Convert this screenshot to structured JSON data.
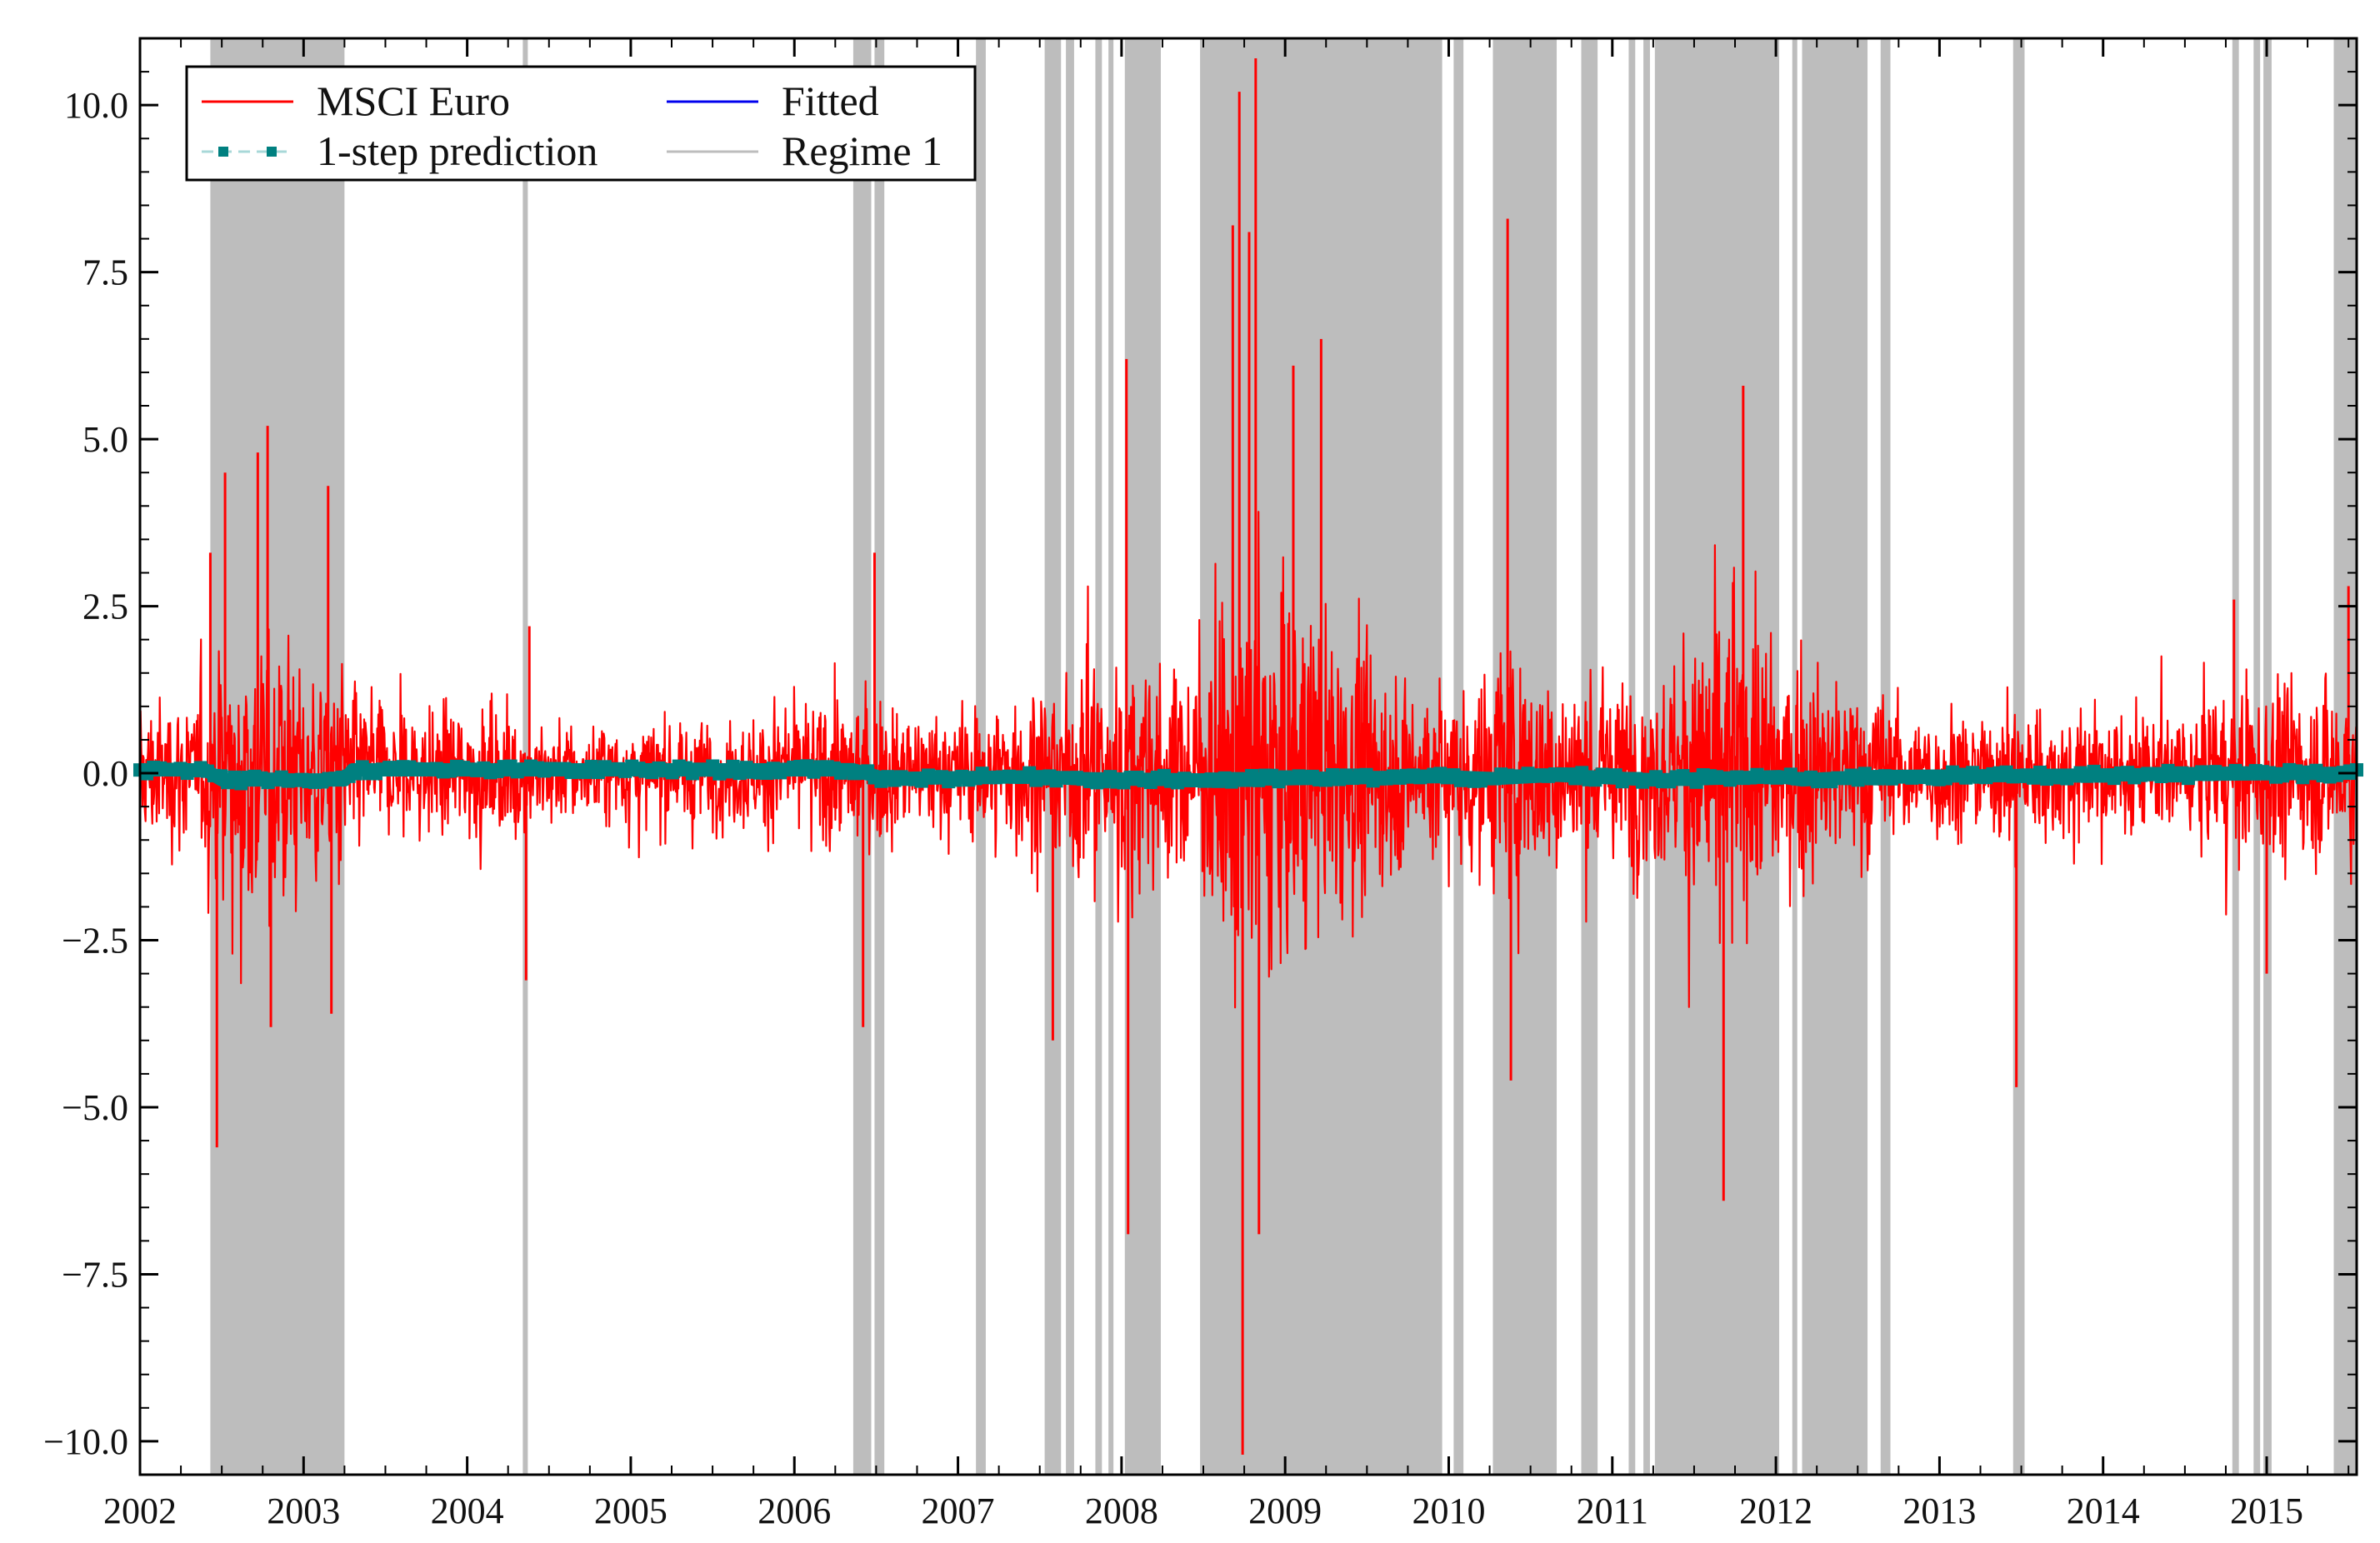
{
  "chart_data": {
    "type": "line",
    "title": "",
    "xlabel": "",
    "ylabel": "",
    "xlim": [
      2002.0,
      2015.55
    ],
    "ylim": [
      -10.5,
      11.0
    ],
    "x_ticks": [
      2002,
      2003,
      2004,
      2005,
      2006,
      2007,
      2008,
      2009,
      2010,
      2011,
      2012,
      2013,
      2014,
      2015
    ],
    "x_tick_labels": [
      "2002",
      "2003",
      "2004",
      "2005",
      "2006",
      "2007",
      "2008",
      "2009",
      "2010",
      "2011",
      "2012",
      "2013",
      "2014",
      "2015"
    ],
    "y_ticks": [
      -10.0,
      -7.5,
      -5.0,
      -2.5,
      0.0,
      2.5,
      5.0,
      7.5,
      10.0
    ],
    "y_tick_labels": [
      "−10.0",
      "−7.5",
      "−5.0",
      "−2.5",
      "0.0",
      "2.5",
      "5.0",
      "7.5",
      "10.0"
    ],
    "grid": false,
    "legend_position": "top-left",
    "legend": [
      {
        "label": "MSCI Euro",
        "style": "line",
        "color": "#ff0000"
      },
      {
        "label": "Fitted",
        "style": "line",
        "color": "#0000ee"
      },
      {
        "label": "1-step prediction",
        "style": "dash-square",
        "color": "#008080"
      },
      {
        "label": "Regime 1",
        "style": "line",
        "color": "#bdbdbd"
      }
    ],
    "regime_1_periods": [
      [
        2002.43,
        2003.25
      ],
      [
        2004.34,
        2004.36
      ],
      [
        2006.36,
        2006.47
      ],
      [
        2006.49,
        2006.55
      ],
      [
        2007.11,
        2007.17
      ],
      [
        2007.53,
        2007.63
      ],
      [
        2007.66,
        2007.71
      ],
      [
        2007.84,
        2007.88
      ],
      [
        2007.92,
        2007.95
      ],
      [
        2008.02,
        2008.24
      ],
      [
        2008.48,
        2009.96
      ],
      [
        2010.03,
        2010.09
      ],
      [
        2010.27,
        2010.66
      ],
      [
        2010.81,
        2010.91
      ],
      [
        2011.1,
        2011.14
      ],
      [
        2011.19,
        2011.23
      ],
      [
        2011.26,
        2012.02
      ],
      [
        2012.1,
        2012.13
      ],
      [
        2012.16,
        2012.56
      ],
      [
        2012.64,
        2012.7
      ],
      [
        2013.45,
        2013.52
      ],
      [
        2014.79,
        2014.83
      ],
      [
        2014.92,
        2014.96
      ],
      [
        2014.98,
        2015.03
      ],
      [
        2015.41,
        2015.55
      ]
    ],
    "series": [
      {
        "name": "MSCI Euro",
        "color": "#ff0000",
        "volatility_envelope": {
          "x": [
            2002.0,
            2002.4,
            2002.5,
            2002.7,
            2002.9,
            2003.2,
            2003.4,
            2004.0,
            2004.5,
            2005.0,
            2005.5,
            2006.0,
            2006.4,
            2006.7,
            2007.0,
            2007.4,
            2007.7,
            2008.0,
            2008.4,
            2008.65,
            2008.8,
            2009.0,
            2009.3,
            2009.6,
            2009.9,
            2010.2,
            2010.4,
            2010.6,
            2011.0,
            2011.4,
            2011.6,
            2011.8,
            2012.0,
            2012.5,
            2012.8,
            2013.2,
            2013.6,
            2014.0,
            2014.5,
            2014.8,
            2015.2,
            2015.55
          ],
          "y": [
            0.9,
            1.0,
            1.8,
            2.0,
            1.7,
            1.4,
            0.9,
            0.8,
            0.7,
            0.6,
            0.7,
            0.8,
            1.0,
            0.8,
            0.8,
            1.1,
            1.3,
            1.5,
            1.2,
            2.6,
            3.2,
            2.4,
            1.8,
            1.4,
            1.2,
            1.3,
            1.8,
            1.3,
            1.2,
            1.3,
            2.2,
            2.0,
            1.4,
            1.2,
            0.9,
            0.8,
            0.9,
            0.8,
            0.7,
            1.1,
            1.1,
            1.2
          ]
        },
        "spikes": [
          {
            "x": 2002.43,
            "y": 3.3
          },
          {
            "x": 2002.47,
            "y": -5.6
          },
          {
            "x": 2002.52,
            "y": 4.5
          },
          {
            "x": 2002.72,
            "y": 4.8
          },
          {
            "x": 2002.78,
            "y": 5.2
          },
          {
            "x": 2002.8,
            "y": -3.8
          },
          {
            "x": 2003.15,
            "y": 4.3
          },
          {
            "x": 2003.17,
            "y": -3.6
          },
          {
            "x": 2004.36,
            "y": -3.1
          },
          {
            "x": 2004.38,
            "y": 2.2
          },
          {
            "x": 2006.42,
            "y": -3.8
          },
          {
            "x": 2006.49,
            "y": 3.3
          },
          {
            "x": 2007.58,
            "y": -4.0
          },
          {
            "x": 2008.03,
            "y": 6.2
          },
          {
            "x": 2008.04,
            "y": -6.9
          },
          {
            "x": 2008.68,
            "y": 8.2
          },
          {
            "x": 2008.72,
            "y": 10.2
          },
          {
            "x": 2008.74,
            "y": -10.2
          },
          {
            "x": 2008.78,
            "y": 8.1
          },
          {
            "x": 2008.82,
            "y": 10.7
          },
          {
            "x": 2008.84,
            "y": -6.9
          },
          {
            "x": 2009.05,
            "y": 6.1
          },
          {
            "x": 2009.22,
            "y": 6.5
          },
          {
            "x": 2010.36,
            "y": 8.3
          },
          {
            "x": 2010.38,
            "y": -4.6
          },
          {
            "x": 2011.68,
            "y": -6.4
          },
          {
            "x": 2011.8,
            "y": 5.8
          },
          {
            "x": 2013.47,
            "y": -4.7
          },
          {
            "x": 2014.8,
            "y": 2.6
          },
          {
            "x": 2015.0,
            "y": -3.0
          },
          {
            "x": 2015.5,
            "y": 2.8
          }
        ]
      },
      {
        "name": "Fitted",
        "color": "#0000ee",
        "x": [
          2002.0,
          2002.4,
          2002.5,
          2003.25,
          2003.3,
          2006.36,
          2006.55,
          2007.53,
          2007.71,
          2008.48,
          2009.96,
          2010.27,
          2010.66,
          2011.26,
          2012.02,
          2012.16,
          2012.56,
          2015.55
        ],
        "y": [
          0.05,
          0.05,
          -0.1,
          -0.1,
          0.05,
          0.05,
          -0.08,
          -0.05,
          -0.08,
          -0.1,
          -0.05,
          -0.08,
          -0.03,
          -0.1,
          -0.05,
          -0.1,
          -0.05,
          0.0
        ]
      },
      {
        "name": "1-step prediction",
        "color": "#008080",
        "x": [
          2002.0,
          2002.4,
          2002.5,
          2003.25,
          2003.3,
          2006.36,
          2006.55,
          2007.53,
          2007.71,
          2008.48,
          2009.96,
          2010.27,
          2010.66,
          2011.26,
          2012.02,
          2012.16,
          2012.56,
          2015.55
        ],
        "y": [
          0.05,
          0.05,
          -0.1,
          -0.1,
          0.05,
          0.05,
          -0.08,
          -0.05,
          -0.08,
          -0.1,
          -0.05,
          -0.08,
          -0.03,
          -0.1,
          -0.05,
          -0.1,
          -0.05,
          0.0
        ]
      }
    ]
  }
}
